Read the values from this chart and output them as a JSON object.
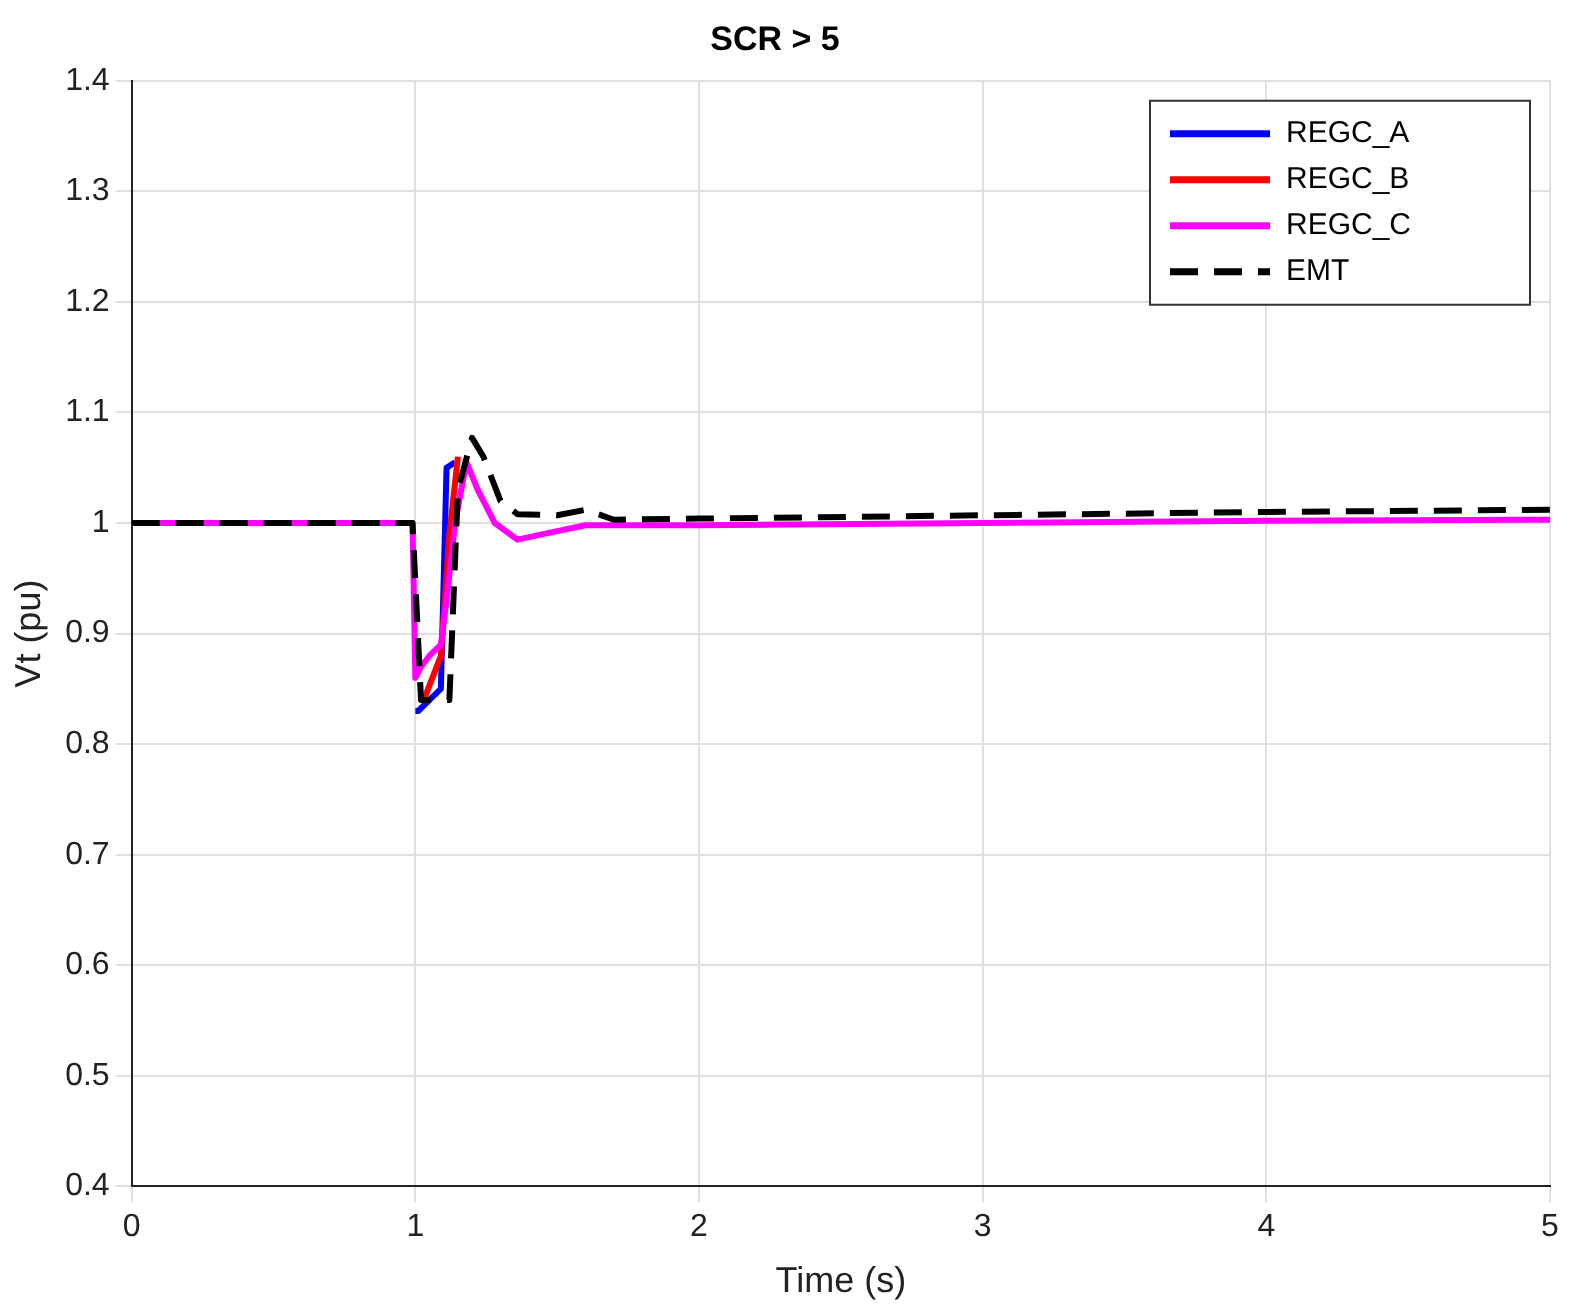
{
  "chart_data": {
    "type": "line",
    "title": "SCR > 5",
    "xlabel": "Time (s)",
    "ylabel": "Vt (pu)",
    "xlim": [
      0,
      5
    ],
    "xticks": [
      0,
      1,
      2,
      3,
      4,
      5
    ],
    "ylim": [
      0.4,
      1.4
    ],
    "yticks": [
      0.4,
      0.5,
      0.6,
      0.7,
      0.8,
      0.9,
      1,
      1.1,
      1.2,
      1.3,
      1.4
    ],
    "grid": true,
    "legend": "top right",
    "marker": "none",
    "series": [
      {
        "name": "REGC_A",
        "color": "#0000ff",
        "line_style": "solid",
        "x": [
          1.0,
          1.01,
          1.05,
          1.09,
          1.11,
          1.14
        ],
        "values": [
          0.83,
          0.83,
          0.84,
          0.85,
          1.05,
          1.055
        ]
      },
      {
        "name": "REGC_B",
        "color": "#ff0000",
        "line_style": "solid",
        "x": [
          1.03,
          1.06,
          1.09,
          1.12,
          1.15
        ],
        "values": [
          0.84,
          0.86,
          0.88,
          0.99,
          1.06
        ]
      },
      {
        "name": "REGC_C",
        "color": "#ff00ff",
        "line_style": "solid",
        "x": [
          0,
          0.99,
          1.0,
          1.02,
          1.05,
          1.09,
          1.11,
          1.14,
          1.18,
          1.22,
          1.28,
          1.36,
          1.45,
          1.6,
          2,
          3,
          4,
          5
        ],
        "values": [
          1,
          1,
          0.86,
          0.87,
          0.88,
          0.89,
          0.93,
          1.0,
          1.055,
          1.03,
          1,
          0.985,
          0.99,
          0.998,
          0.998,
          1,
          1.002,
          1.003
        ]
      },
      {
        "name": "EMT",
        "color": "#000000",
        "line_style": "dashed",
        "x": [
          0,
          0.99,
          1.02,
          1.06,
          1.12,
          1.15,
          1.2,
          1.24,
          1.3,
          1.36,
          1.5,
          1.6,
          1.7,
          2,
          3,
          4,
          5
        ],
        "values": [
          1,
          1,
          0.84,
          0.84,
          0.84,
          1.03,
          1.077,
          1.06,
          1.02,
          1.008,
          1.007,
          1.012,
          1.003,
          1.004,
          1.007,
          1.01,
          1.012
        ]
      }
    ]
  }
}
